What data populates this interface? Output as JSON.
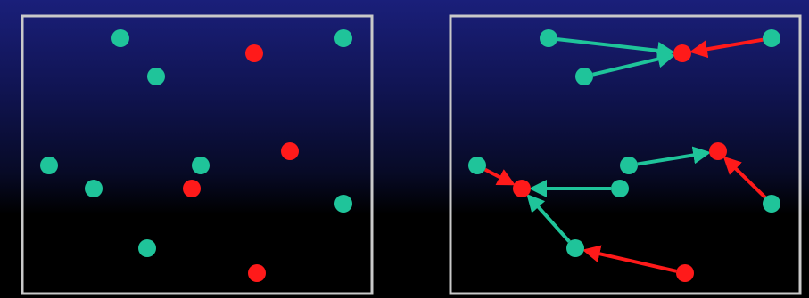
{
  "colors": {
    "background_top": "#1a1f7a",
    "background_bottom": "#000000",
    "frame": "#c9c9c9",
    "node_green": "#1fc49a",
    "node_red": "#ff1a1a",
    "arrow_green": "#1fc49a",
    "arrow_red": "#ff1a1a"
  },
  "panels": [
    {
      "name": "panel-left-unclustered",
      "nodes": [
        {
          "id": "a",
          "color": "green"
        },
        {
          "id": "b",
          "color": "red"
        },
        {
          "id": "c",
          "color": "green"
        },
        {
          "id": "d",
          "color": "green"
        },
        {
          "id": "e",
          "color": "red"
        },
        {
          "id": "f",
          "color": "green"
        },
        {
          "id": "g",
          "color": "green"
        },
        {
          "id": "h",
          "color": "red"
        },
        {
          "id": "i",
          "color": "green"
        },
        {
          "id": "j",
          "color": "green"
        },
        {
          "id": "k",
          "color": "green"
        },
        {
          "id": "l",
          "color": "red"
        }
      ]
    },
    {
      "name": "panel-right-clustered",
      "nodes": [
        {
          "id": "a",
          "color": "green"
        },
        {
          "id": "b",
          "color": "red"
        },
        {
          "id": "c",
          "color": "green"
        },
        {
          "id": "d",
          "color": "green"
        },
        {
          "id": "e",
          "color": "red"
        },
        {
          "id": "f",
          "color": "green"
        },
        {
          "id": "g",
          "color": "green"
        },
        {
          "id": "h",
          "color": "red"
        },
        {
          "id": "i",
          "color": "green"
        },
        {
          "id": "j",
          "color": "green"
        },
        {
          "id": "k",
          "color": "green"
        },
        {
          "id": "l",
          "color": "red"
        }
      ],
      "edges": [
        {
          "from": "a",
          "to": "b",
          "color": "green"
        },
        {
          "from": "d",
          "to": "b",
          "color": "green"
        },
        {
          "from": "c",
          "to": "b",
          "color": "red"
        },
        {
          "from": "g",
          "to": "e",
          "color": "green"
        },
        {
          "from": "j",
          "to": "e",
          "color": "red"
        },
        {
          "from": "f",
          "to": "h",
          "color": "red"
        },
        {
          "from": "i",
          "to": "h",
          "color": "green"
        },
        {
          "from": "k",
          "to": "h",
          "color": "green"
        },
        {
          "from": "l",
          "to": "k",
          "color": "red"
        }
      ]
    }
  ]
}
